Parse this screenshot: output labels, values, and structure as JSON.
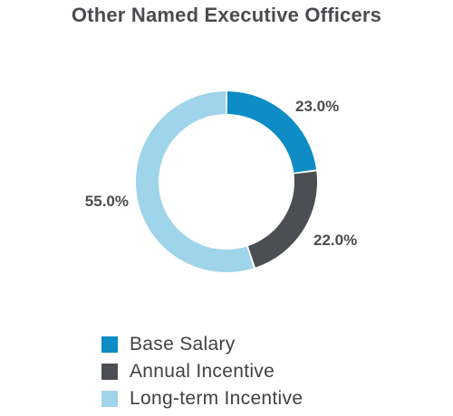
{
  "chart_data": {
    "type": "pie",
    "variant": "donut",
    "title": "Other Named Executive Officers",
    "categories": [
      "Base Salary",
      "Annual Incentive",
      "Long-term Incentive"
    ],
    "values": [
      23.0,
      22.0,
      55.0
    ],
    "value_labels": [
      "23.0%",
      "22.0%",
      "55.0%"
    ],
    "colors": [
      "#0e8cc6",
      "#4b4e52",
      "#9fd4ea"
    ],
    "start_angle_deg": 0,
    "direction": "clockwise",
    "legend_position": "bottom"
  }
}
